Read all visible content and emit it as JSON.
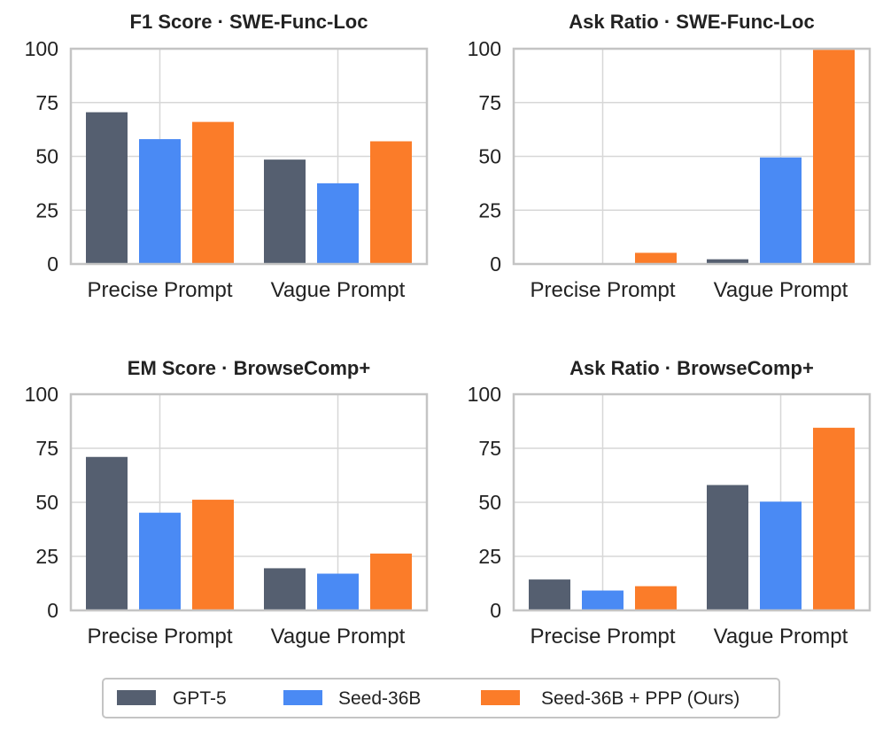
{
  "chart_data": [
    {
      "type": "bar",
      "title": "F1 Score · SWE-Func-Loc",
      "categories": [
        "Precise Prompt",
        "Vague Prompt"
      ],
      "ylim": [
        0,
        100
      ],
      "yticks": [
        0,
        25,
        50,
        75,
        100
      ],
      "grid": true,
      "series": [
        {
          "name": "GPT-5",
          "values": [
            70.5,
            48.5
          ]
        },
        {
          "name": "Seed-36B",
          "values": [
            58,
            37.5
          ]
        },
        {
          "name": "Seed-36B + PPP (Ours)",
          "values": [
            66,
            57
          ]
        }
      ]
    },
    {
      "type": "bar",
      "title": "Ask Ratio · SWE-Func-Loc",
      "categories": [
        "Precise Prompt",
        "Vague Prompt"
      ],
      "ylim": [
        0,
        100
      ],
      "yticks": [
        0,
        25,
        50,
        75,
        100
      ],
      "grid": true,
      "series": [
        {
          "name": "GPT-5",
          "values": [
            0,
            2.2
          ]
        },
        {
          "name": "Seed-36B",
          "values": [
            0,
            49.5
          ]
        },
        {
          "name": "Seed-36B + PPP (Ours)",
          "values": [
            5.2,
            99.5
          ]
        }
      ]
    },
    {
      "type": "bar",
      "title": "EM Score · BrowseComp+",
      "categories": [
        "Precise Prompt",
        "Vague Prompt"
      ],
      "ylim": [
        0,
        100
      ],
      "yticks": [
        0,
        25,
        50,
        75,
        100
      ],
      "grid": true,
      "series": [
        {
          "name": "GPT-5",
          "values": [
            71,
            19.5
          ]
        },
        {
          "name": "Seed-36B",
          "values": [
            45.2,
            17
          ]
        },
        {
          "name": "Seed-36B + PPP (Ours)",
          "values": [
            51.2,
            26.3
          ]
        }
      ]
    },
    {
      "type": "bar",
      "title": "Ask Ratio · BrowseComp+",
      "categories": [
        "Precise Prompt",
        "Vague Prompt"
      ],
      "ylim": [
        0,
        100
      ],
      "yticks": [
        0,
        25,
        50,
        75,
        100
      ],
      "grid": true,
      "series": [
        {
          "name": "GPT-5",
          "values": [
            14.3,
            58
          ]
        },
        {
          "name": "Seed-36B",
          "values": [
            9.2,
            50.3
          ]
        },
        {
          "name": "Seed-36B + PPP (Ours)",
          "values": [
            11.2,
            84.5
          ]
        }
      ]
    }
  ],
  "legend": {
    "placement": "bottom-center",
    "items": [
      {
        "label": "GPT-5",
        "color": "#555f70"
      },
      {
        "label": "Seed-36B",
        "color": "#4a8af4"
      },
      {
        "label": "Seed-36B + PPP (Ours)",
        "color": "#fb7c29"
      }
    ]
  }
}
